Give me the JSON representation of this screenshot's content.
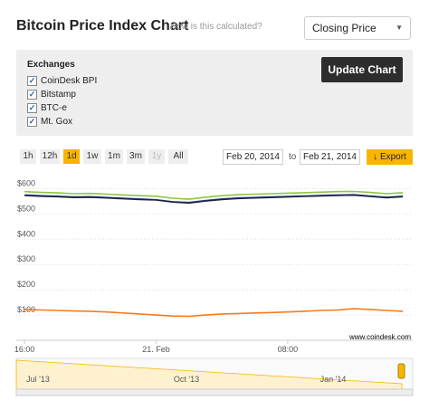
{
  "header": {
    "title": "Bitcoin Price Index Chart",
    "help_link": "How is this calculated?",
    "price_select": "Closing Price"
  },
  "exchanges": {
    "label": "Exchanges",
    "options": [
      "CoinDesk BPI",
      "Bitstamp",
      "BTC-e",
      "Mt. Gox"
    ],
    "button": "Update Chart"
  },
  "range": {
    "buttons": [
      "1h",
      "12h",
      "1d",
      "1w",
      "1m",
      "3m",
      "1y",
      "All"
    ],
    "active_index": 2,
    "disabled_index": 6,
    "from": "Feb 20, 2014",
    "to_label": "to",
    "to": "Feb 21, 2014",
    "export": "Export"
  },
  "chart_data": {
    "type": "line",
    "credit": "www.coindesk.com",
    "x": [
      16,
      17,
      18,
      19,
      20,
      21,
      22,
      23,
      24,
      25,
      26,
      27,
      28,
      29,
      30,
      31,
      32,
      33,
      34,
      35,
      36,
      37,
      38,
      39
    ],
    "series": [
      {
        "color": "#8dc63f",
        "values": [
          588,
          585,
          583,
          580,
          581,
          578,
          575,
          572,
          570,
          562,
          558,
          566,
          572,
          576,
          578,
          580,
          582,
          584,
          586,
          588,
          589,
          585,
          580,
          584
        ]
      },
      {
        "color": "#3a4fa0",
        "values": [
          575,
          572,
          570,
          567,
          568,
          565,
          562,
          559,
          556,
          548,
          545,
          553,
          559,
          563,
          565,
          567,
          569,
          571,
          573,
          575,
          576,
          571,
          566,
          570
        ]
      },
      {
        "color": "#1c2340",
        "values": [
          573,
          570,
          568,
          565,
          566,
          563,
          560,
          557,
          555,
          547,
          543,
          551,
          557,
          561,
          563,
          565,
          567,
          569,
          571,
          573,
          574,
          569,
          564,
          568
        ]
      },
      {
        "color": "#f47b20",
        "values": [
          122,
          120,
          118,
          116,
          115,
          112,
          108,
          104,
          100,
          96,
          95,
          100,
          104,
          106,
          108,
          110,
          112,
          115,
          118,
          120,
          125,
          122,
          118,
          115
        ]
      }
    ],
    "xlim": [
      15.5,
      39.6
    ],
    "xticks": [
      {
        "value": 16,
        "label": "16:00"
      },
      {
        "value": 24,
        "label": "21. Feb"
      },
      {
        "value": 32,
        "label": "08:00"
      }
    ],
    "ylim": [
      0,
      630
    ],
    "yticks": [
      {
        "value": 100,
        "label": "$100"
      },
      {
        "value": 200,
        "label": "$200"
      },
      {
        "value": 300,
        "label": "$300"
      },
      {
        "value": 400,
        "label": "$400"
      },
      {
        "value": 500,
        "label": "$500"
      },
      {
        "value": 600,
        "label": "$600"
      }
    ],
    "grid": true
  },
  "navigator": {
    "labels": [
      "Jul '13",
      "Oct '13",
      "Jan '14"
    ]
  }
}
